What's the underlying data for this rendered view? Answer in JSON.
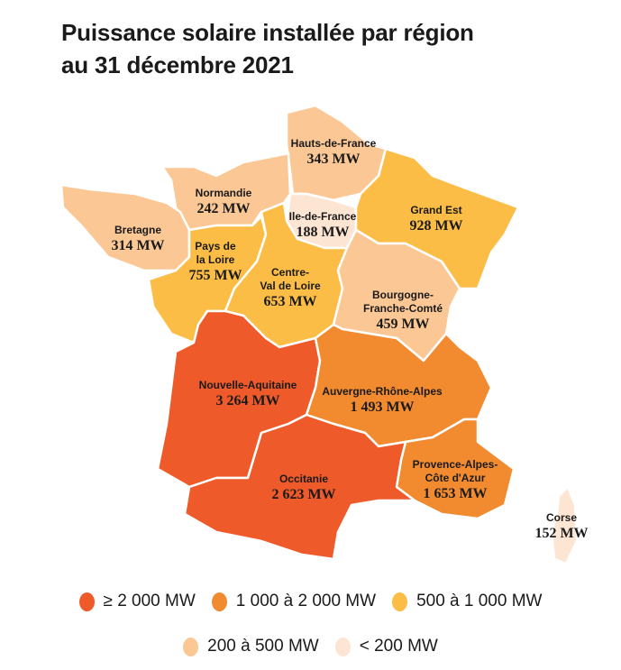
{
  "title": [
    "Puissance solaire installée par région",
    "au 31 décembre 2021"
  ],
  "colors": {
    "c1": "#ee5a2a",
    "c2": "#f28a30",
    "c3": "#fbbd45",
    "c4": "#fbc895",
    "c5": "#fde5d4"
  },
  "regions": [
    {
      "name": "Hauts-de-France",
      "value": "343 MW",
      "class": "c4"
    },
    {
      "name": "Normandie",
      "value": "242 MW",
      "class": "c4"
    },
    {
      "name": "Bretagne",
      "value": "314 MW",
      "class": "c4"
    },
    {
      "name": "Ile-de-France",
      "value": "188 MW",
      "class": "c5"
    },
    {
      "name": "Grand Est",
      "value": "928 MW",
      "class": "c3"
    },
    {
      "name": "Pays de\nla Loire",
      "value": "755 MW",
      "class": "c3"
    },
    {
      "name": "Centre-\nVal de Loire",
      "value": "653 MW",
      "class": "c3"
    },
    {
      "name": "Bourgogne-\nFranche-Comté",
      "value": "459 MW",
      "class": "c4"
    },
    {
      "name": "Nouvelle-Aquitaine",
      "value": "3 264 MW",
      "class": "c1"
    },
    {
      "name": "Auvergne-Rhône-Alpes",
      "value": "1 493 MW",
      "class": "c2"
    },
    {
      "name": "Provence-Alpes-\nCôte d'Azur",
      "value": "1 653 MW",
      "class": "c2"
    },
    {
      "name": "Occitanie",
      "value": "2 623 MW",
      "class": "c1"
    },
    {
      "name": "Corse",
      "value": "152 MW",
      "class": "c5"
    }
  ],
  "legend": [
    {
      "label": "≥  2 000 MW",
      "class": "c1"
    },
    {
      "label": "1 000 à 2 000 MW",
      "class": "c2"
    },
    {
      "label": "500 à 1 000 MW",
      "class": "c3"
    },
    {
      "label": "200 à 500 MW",
      "class": "c4"
    },
    {
      "label": "< 200 MW",
      "class": "c5"
    }
  ]
}
